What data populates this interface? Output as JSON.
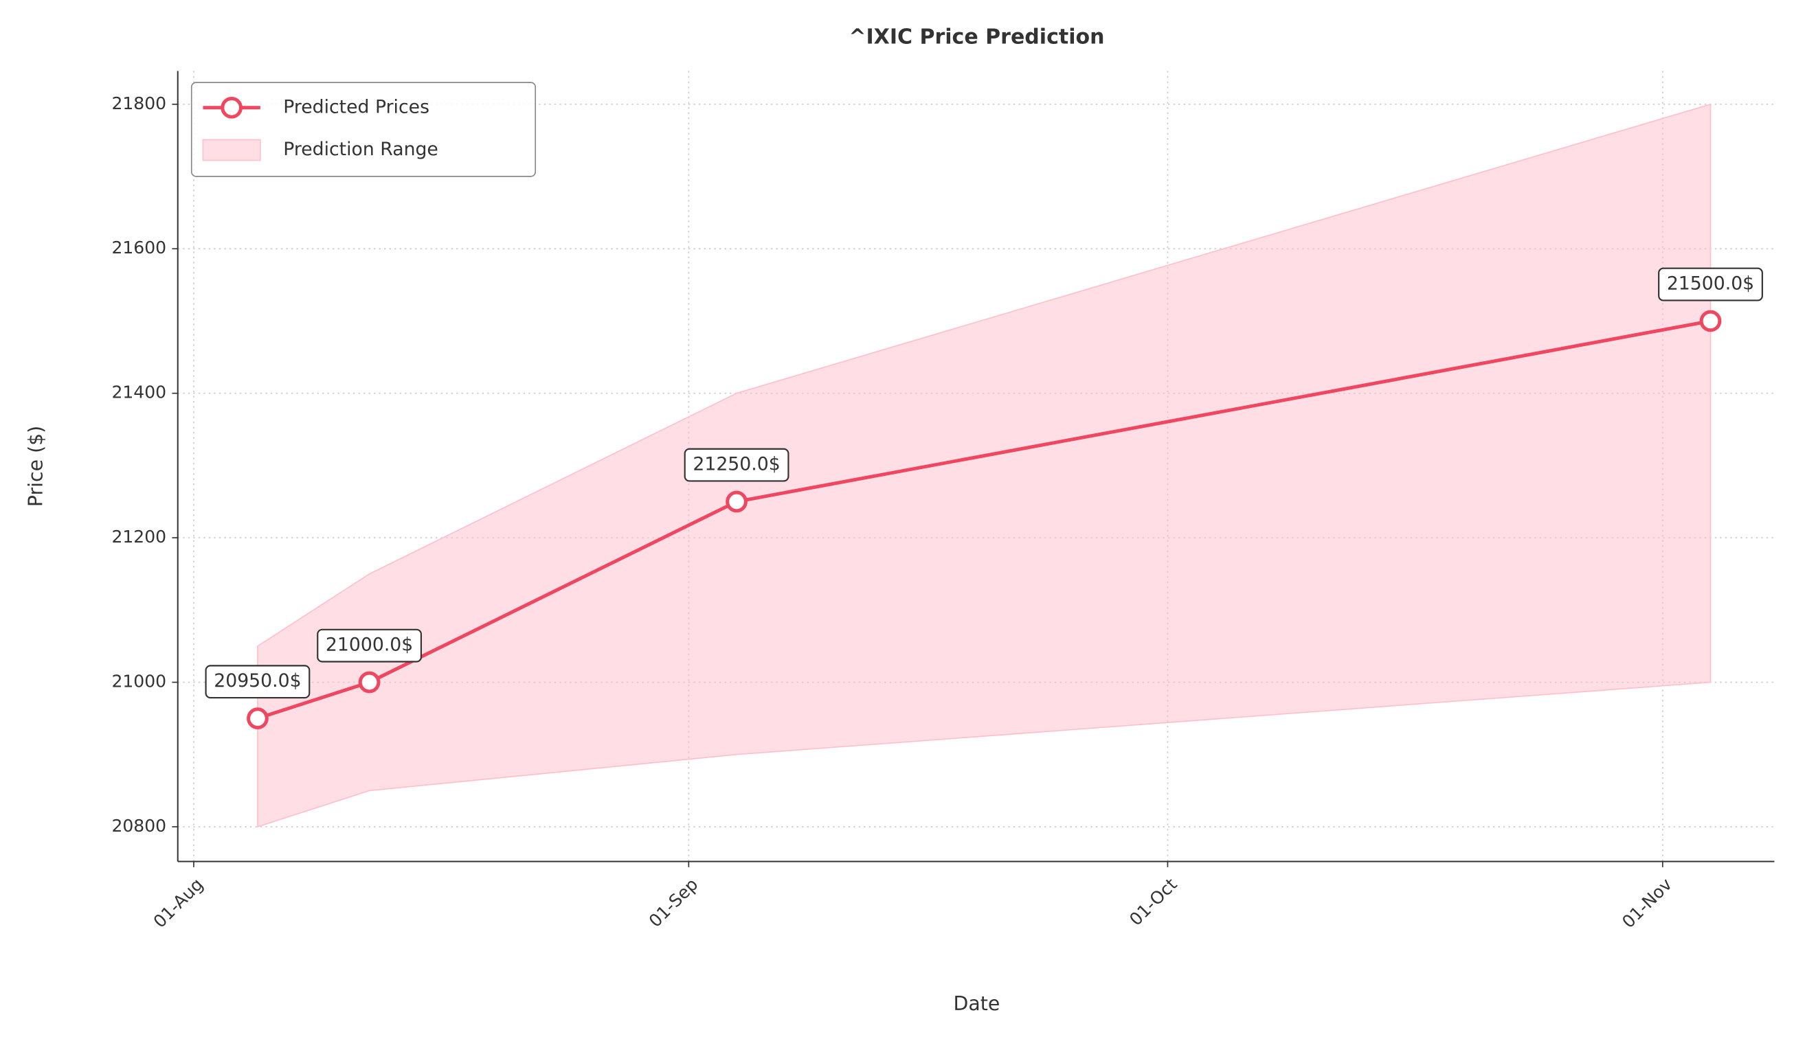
{
  "chart_data": {
    "type": "line",
    "title": "^IXIC Price Prediction",
    "xlabel": "Date",
    "ylabel": "Price ($)",
    "x": [
      "05-Aug",
      "12-Aug",
      "04-Sep",
      "04-Nov"
    ],
    "xlim": [
      "31-Jul",
      "08-Nov"
    ],
    "xticks": [
      "01-Aug",
      "01-Sep",
      "01-Oct",
      "01-Nov"
    ],
    "ylim": [
      20752,
      21846
    ],
    "yticks": [
      20800,
      21000,
      21200,
      21400,
      21600,
      21800
    ],
    "grid": true,
    "legend": "upper left",
    "series": [
      {
        "name": "Predicted Prices",
        "color": "#f0465f",
        "values": [
          20950,
          21000,
          21250,
          21500
        ],
        "value_labels": [
          "20950.0$",
          "21000.0$",
          "21250.0$",
          "21500.0$"
        ]
      }
    ],
    "range": {
      "name": "Prediction Range",
      "color": "#ffc0cb",
      "lower": [
        20800,
        20850,
        20900,
        21000
      ],
      "upper": [
        21050,
        21150,
        21400,
        21800
      ]
    }
  }
}
